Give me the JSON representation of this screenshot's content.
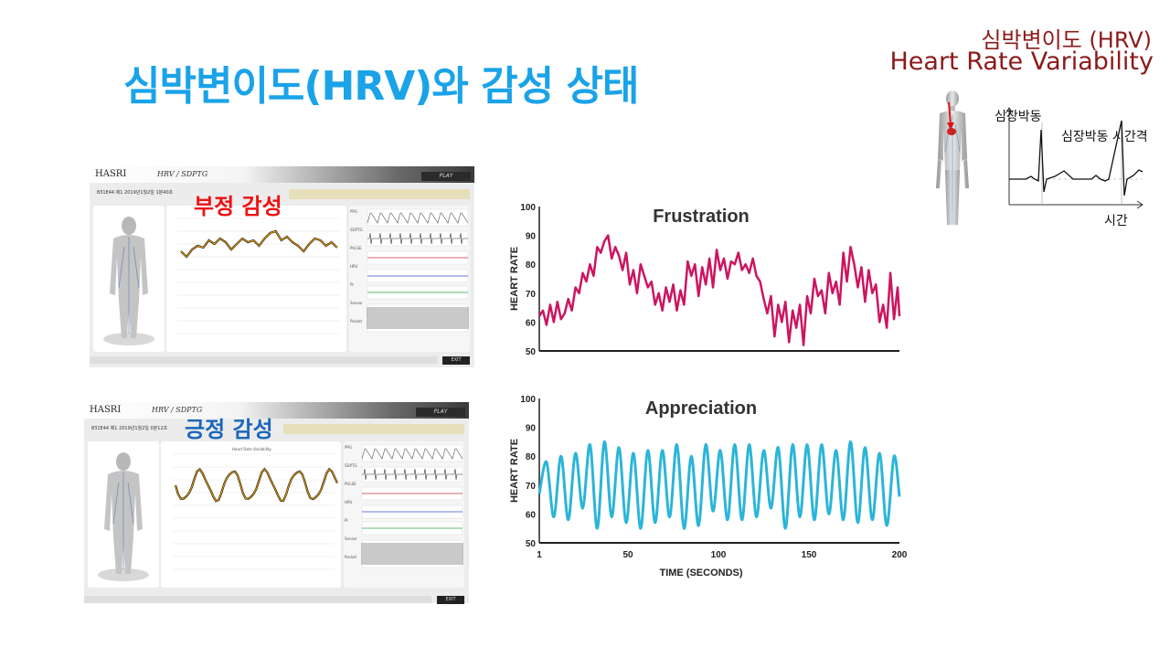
{
  "title": "심박변이도(HRV)와 감성 상태",
  "hrv_label_ko": "심박변이도 (HRV)",
  "hrv_label_en": "Heart Rate Variability",
  "ecg": {
    "y_label": "심장박동",
    "interval_label": "심장박동 시간격",
    "x_label": "시간"
  },
  "screenshots": [
    {
      "logo": "HASRI",
      "header_title": "HRV / SDPTG",
      "play_label": "PLAY",
      "info_line": "831E44 제1 2019년1월2일  1분40초",
      "emotion_label": "부정 감성",
      "exit_label": "EXIT",
      "trace_color": "#f5a300"
    },
    {
      "logo": "HASRI",
      "header_title": "HRV / SDPTG",
      "play_label": "PLAY",
      "info_line": "831E44 제1 2019년1월2일  0분12초",
      "emotion_label": "긍정 감성",
      "exit_label": "EXIT",
      "graph_title": "Heart Rate Variability",
      "trace_color": "#f5a300"
    }
  ],
  "side_labels": [
    "PPG",
    "SDPTG",
    "PULSE",
    "HRV",
    "PI",
    "Sensor",
    "Packet"
  ],
  "chart_data": [
    {
      "type": "line",
      "title": "Frustration",
      "xlabel": "",
      "ylabel": "HEART RATE",
      "ylim": [
        50,
        100
      ],
      "yticks": [
        50,
        60,
        70,
        80,
        90,
        100
      ],
      "xlim": [
        1,
        200
      ],
      "color": "#cc1560",
      "x": [
        1,
        3,
        5,
        7,
        9,
        11,
        13,
        15,
        17,
        19,
        21,
        23,
        25,
        27,
        29,
        31,
        33,
        35,
        37,
        39,
        41,
        43,
        45,
        47,
        49,
        51,
        53,
        55,
        57,
        59,
        61,
        63,
        65,
        67,
        69,
        71,
        73,
        75,
        77,
        79,
        81,
        83,
        85,
        87,
        89,
        91,
        93,
        95,
        97,
        99,
        101,
        103,
        105,
        107,
        109,
        111,
        113,
        115,
        117,
        119,
        121,
        123,
        125,
        127,
        129,
        131,
        133,
        135,
        137,
        139,
        141,
        143,
        145,
        147,
        149,
        151,
        153,
        155,
        157,
        159,
        161,
        163,
        165,
        167,
        169,
        171,
        173,
        175,
        177,
        179,
        181,
        183,
        185,
        187,
        189,
        191,
        193,
        195,
        197,
        199,
        200
      ],
      "y": [
        62,
        64,
        59,
        66,
        60,
        67,
        61,
        63,
        68,
        64,
        72,
        70,
        77,
        74,
        80,
        76,
        86,
        84,
        88,
        90,
        82,
        86,
        83,
        78,
        84,
        73,
        78,
        70,
        80,
        76,
        72,
        74,
        66,
        70,
        64,
        72,
        67,
        73,
        64,
        71,
        66,
        81,
        76,
        80,
        69,
        79,
        73,
        82,
        72,
        85,
        78,
        82,
        75,
        81,
        80,
        84,
        78,
        80,
        77,
        82,
        76,
        74,
        68,
        63,
        69,
        55,
        66,
        60,
        67,
        53,
        64,
        58,
        66,
        52,
        69,
        63,
        75,
        69,
        71,
        63,
        77,
        70,
        74,
        66,
        84,
        74,
        86,
        80,
        72,
        79,
        67,
        78,
        70,
        73,
        60,
        66,
        58,
        77,
        61,
        72,
        62
      ]
    },
    {
      "type": "line",
      "title": "Appreciation",
      "xlabel": "TIME (SECONDS)",
      "ylabel": "HEART RATE",
      "ylim": [
        50,
        100
      ],
      "yticks": [
        50,
        60,
        70,
        80,
        90,
        100
      ],
      "xlim": [
        1,
        200
      ],
      "xticks": [
        1,
        50,
        100,
        150,
        200
      ],
      "color": "#2bb5d8",
      "x": [
        1,
        5,
        9,
        13,
        17,
        21,
        25,
        29,
        33,
        37,
        41,
        45,
        49,
        53,
        57,
        61,
        65,
        69,
        73,
        77,
        81,
        85,
        89,
        93,
        97,
        101,
        105,
        109,
        113,
        117,
        121,
        125,
        129,
        133,
        137,
        141,
        145,
        149,
        153,
        157,
        161,
        165,
        169,
        173,
        177,
        181,
        185,
        189,
        193,
        197,
        200
      ],
      "y": [
        67,
        78,
        59,
        80,
        58,
        81,
        62,
        84,
        55,
        85,
        59,
        83,
        57,
        81,
        55,
        82,
        57,
        82,
        59,
        84,
        55,
        80,
        56,
        84,
        61,
        82,
        58,
        84,
        58,
        84,
        59,
        82,
        62,
        83,
        55,
        84,
        59,
        84,
        58,
        84,
        60,
        82,
        58,
        85,
        57,
        83,
        58,
        81,
        56,
        80,
        66
      ]
    }
  ]
}
